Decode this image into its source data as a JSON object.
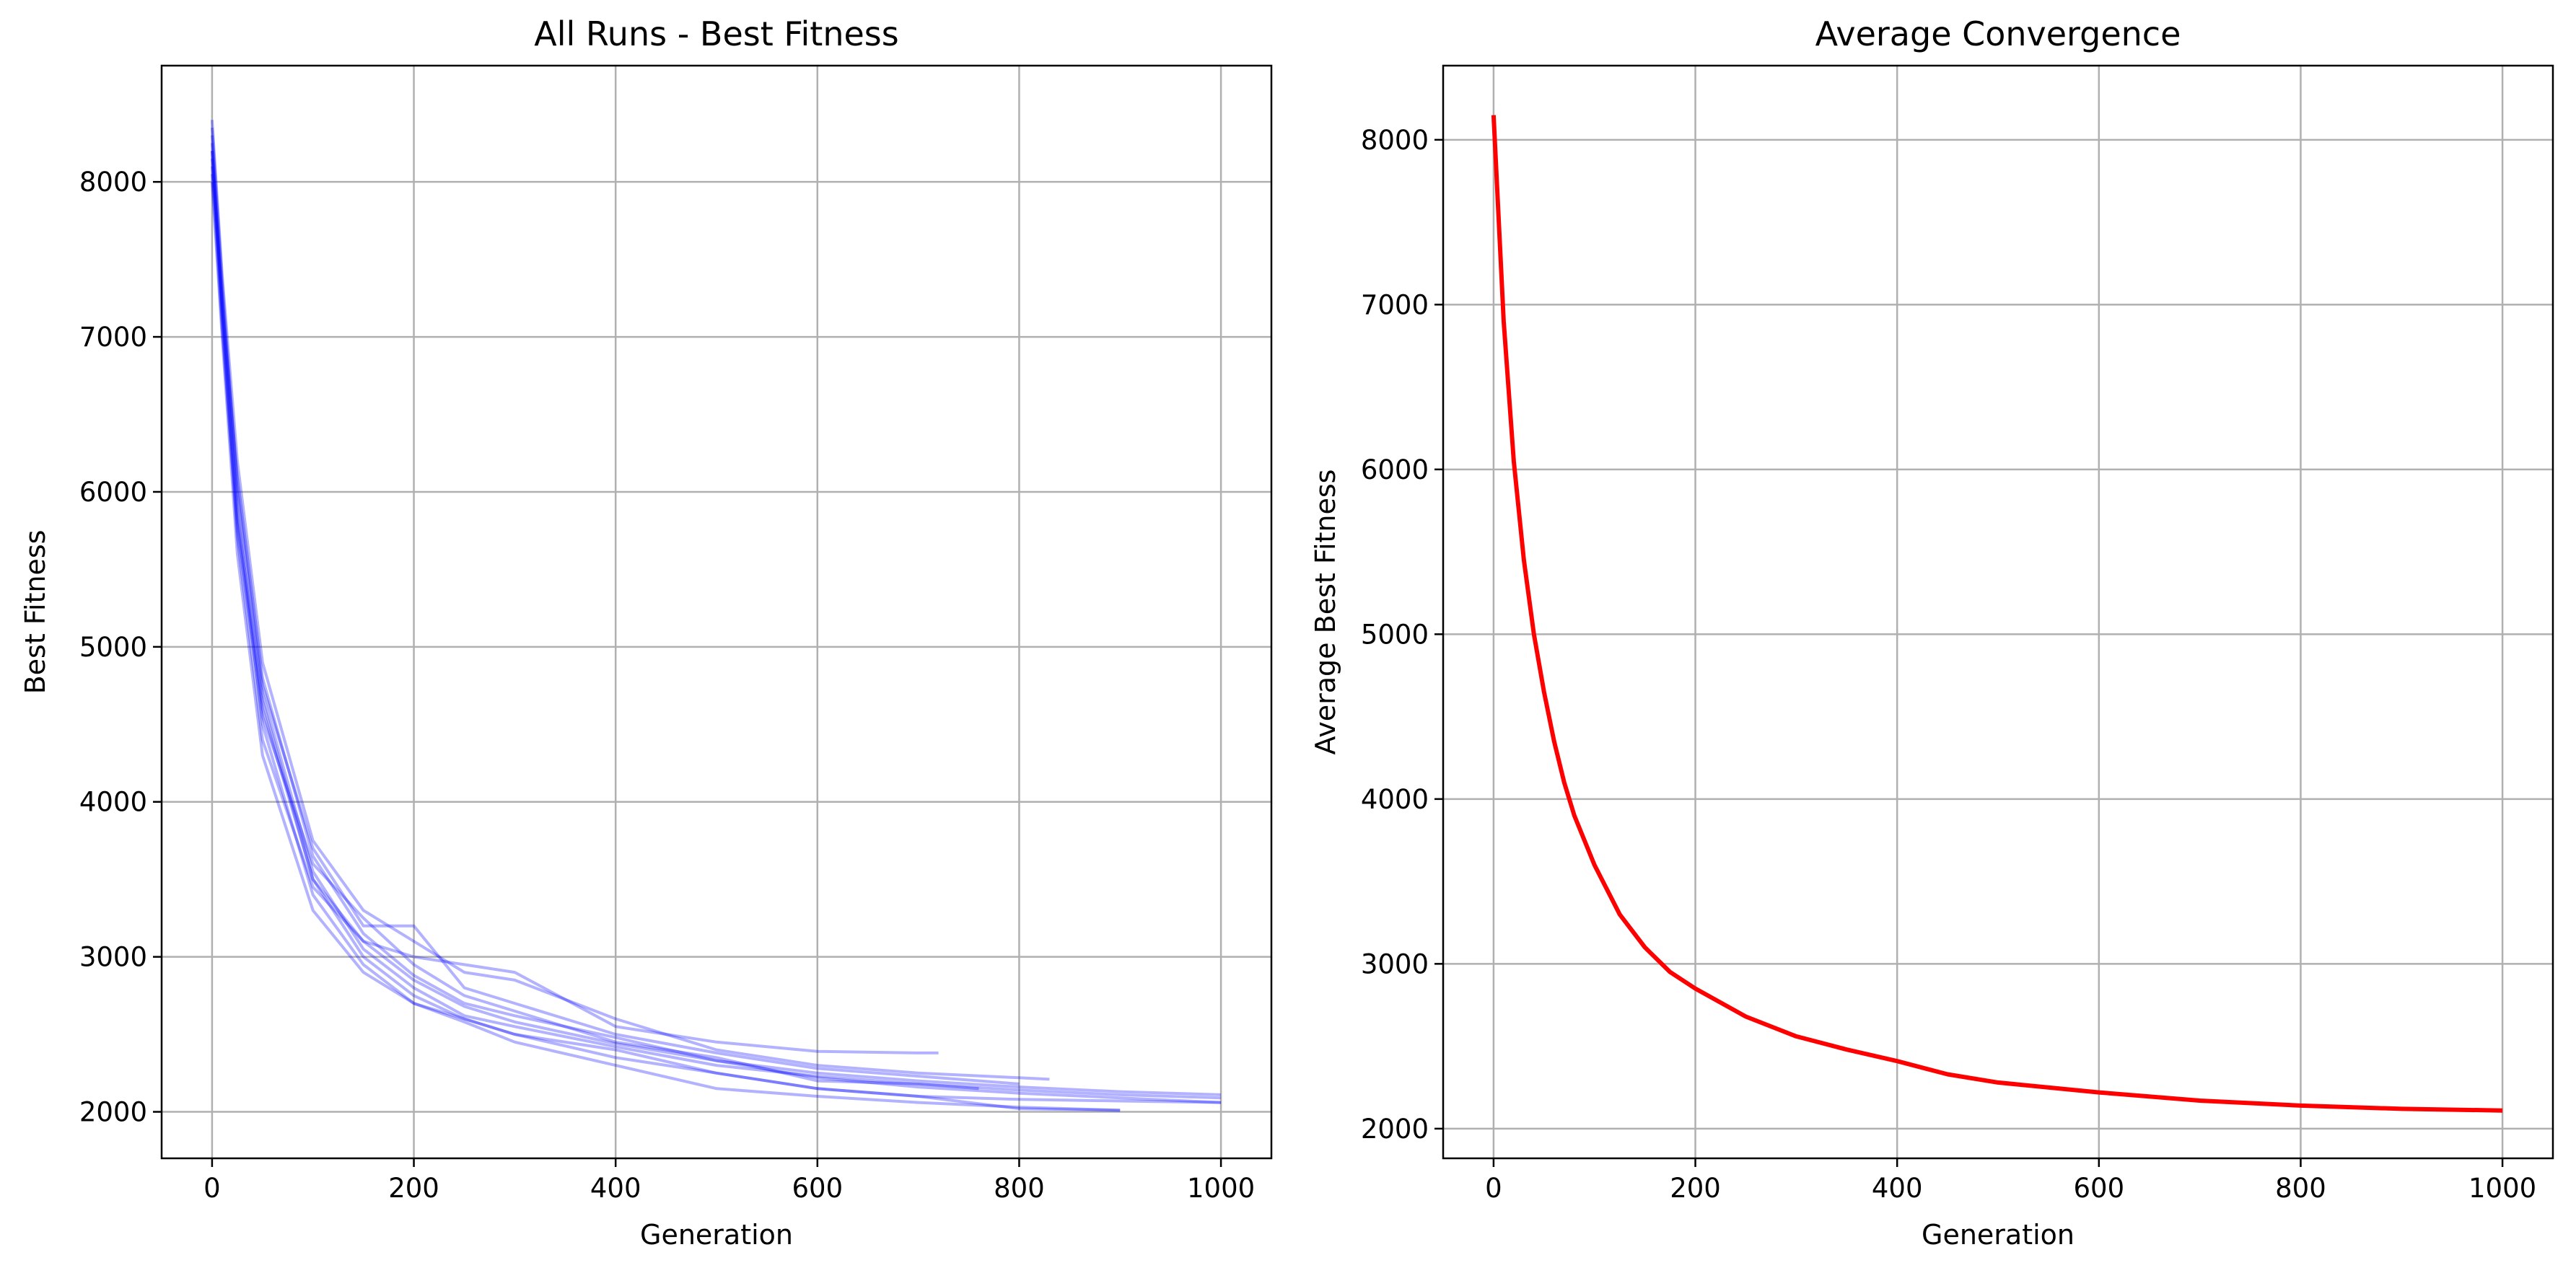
{
  "chart_data": [
    {
      "type": "line",
      "title": "All Runs - Best Fitness",
      "xlabel": "Generation",
      "ylabel": "Best Fitness",
      "xlim": [
        -50,
        1050
      ],
      "ylim": [
        1700,
        8750
      ],
      "xticks": [
        0,
        200,
        400,
        600,
        800,
        1000
      ],
      "yticks": [
        2000,
        3000,
        4000,
        5000,
        6000,
        7000,
        8000
      ],
      "grid": true,
      "line_color": "#0000ff",
      "line_alpha": 0.3,
      "series": [
        {
          "x": [
            0,
            10,
            25,
            50,
            100,
            150,
            200,
            250,
            300,
            400,
            500,
            600,
            700,
            800,
            900,
            1000
          ],
          "y": [
            8100,
            7200,
            6100,
            4800,
            3650,
            3150,
            2880,
            2700,
            2620,
            2480,
            2330,
            2250,
            2200,
            2160,
            2130,
            2110
          ]
        },
        {
          "x": [
            0,
            10,
            25,
            50,
            100,
            150,
            200,
            250,
            300,
            400,
            500,
            600,
            700,
            800,
            900,
            1000
          ],
          "y": [
            8300,
            7300,
            6000,
            4700,
            3550,
            3050,
            2800,
            2620,
            2550,
            2420,
            2300,
            2230,
            2180,
            2140,
            2110,
            2090
          ]
        },
        {
          "x": [
            0,
            10,
            25,
            50,
            100,
            150,
            200,
            250,
            300,
            400,
            500,
            600,
            700,
            800,
            900,
            1000
          ],
          "y": [
            8250,
            7150,
            5800,
            4600,
            3500,
            3000,
            2750,
            2600,
            2500,
            2350,
            2250,
            2150,
            2100,
            2080,
            2070,
            2060
          ]
        },
        {
          "x": [
            0,
            10,
            25,
            50,
            100,
            150,
            200,
            250,
            300,
            400,
            500,
            600,
            700,
            800,
            900
          ],
          "y": [
            8200,
            7250,
            5900,
            4500,
            3400,
            2950,
            2700,
            2580,
            2450,
            2300,
            2150,
            2100,
            2060,
            2030,
            2010
          ]
        },
        {
          "x": [
            0,
            10,
            25,
            50,
            100,
            150,
            200,
            250,
            300,
            400,
            500,
            600,
            700,
            800,
            830
          ],
          "y": [
            8400,
            7400,
            6200,
            4900,
            3750,
            3300,
            3100,
            2900,
            2850,
            2600,
            2400,
            2300,
            2250,
            2220,
            2210
          ]
        },
        {
          "x": [
            0,
            10,
            25,
            50,
            100,
            150,
            200,
            250,
            300,
            400,
            500,
            600,
            700,
            720
          ],
          "y": [
            8150,
            7100,
            5700,
            4400,
            3450,
            3100,
            3000,
            2950,
            2900,
            2550,
            2450,
            2390,
            2380,
            2380
          ]
        },
        {
          "x": [
            0,
            10,
            25,
            50,
            100,
            150,
            200,
            250,
            300,
            400,
            500,
            600,
            700,
            800,
            900
          ],
          "y": [
            8000,
            7000,
            5600,
            4300,
            3300,
            2900,
            2700,
            2600,
            2500,
            2400,
            2250,
            2150,
            2100,
            2020,
            2010
          ]
        },
        {
          "x": [
            0,
            10,
            25,
            50,
            100,
            150,
            200,
            250,
            300,
            400,
            500,
            600,
            700,
            800
          ],
          "y": [
            8350,
            7350,
            6050,
            4750,
            3700,
            3200,
            3200,
            2800,
            2700,
            2500,
            2380,
            2280,
            2230,
            2180
          ]
        },
        {
          "x": [
            0,
            10,
            25,
            50,
            100,
            150,
            200,
            250,
            300,
            400,
            500,
            600,
            700,
            760
          ],
          "y": [
            8050,
            7050,
            5750,
            4550,
            3600,
            3250,
            2950,
            2750,
            2650,
            2450,
            2350,
            2200,
            2180,
            2150
          ]
        },
        {
          "x": [
            0,
            10,
            25,
            50,
            100,
            150,
            200,
            250,
            300,
            400,
            500,
            600,
            700,
            800,
            900,
            1000
          ],
          "y": [
            8200,
            7200,
            5850,
            4650,
            3500,
            3100,
            2850,
            2680,
            2580,
            2440,
            2330,
            2220,
            2160,
            2120,
            2090,
            2060
          ]
        }
      ]
    },
    {
      "type": "line",
      "title": "Average Convergence",
      "xlabel": "Generation",
      "ylabel": "Average Best Fitness",
      "xlim": [
        -50,
        1050
      ],
      "ylim": [
        1820,
        8450
      ],
      "xticks": [
        0,
        200,
        400,
        600,
        800,
        1000
      ],
      "yticks": [
        2000,
        3000,
        4000,
        5000,
        6000,
        7000,
        8000
      ],
      "grid": true,
      "line_color": "#ff0000",
      "series": [
        {
          "x": [
            0,
            10,
            20,
            30,
            40,
            50,
            60,
            70,
            80,
            100,
            125,
            150,
            175,
            200,
            250,
            300,
            350,
            400,
            450,
            500,
            600,
            700,
            800,
            900,
            1000
          ],
          "y": [
            8150,
            6900,
            6050,
            5450,
            5000,
            4650,
            4350,
            4100,
            3900,
            3600,
            3300,
            3100,
            2950,
            2850,
            2680,
            2560,
            2480,
            2410,
            2330,
            2280,
            2220,
            2170,
            2140,
            2120,
            2110
          ]
        }
      ]
    }
  ]
}
